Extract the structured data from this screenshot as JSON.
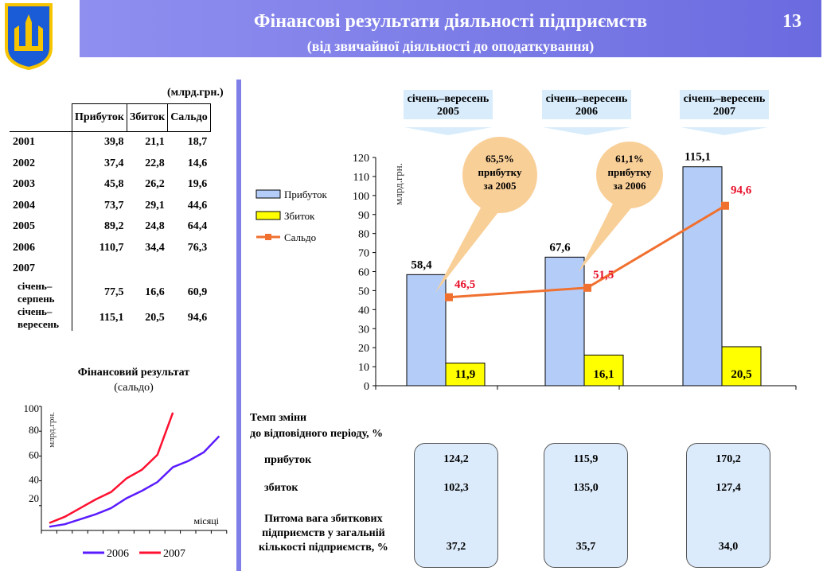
{
  "header": {
    "title": "Фінансові результати діяльності підприємств",
    "subtitle": "(від звичайної діяльності до оподаткування)",
    "page_number": "13"
  },
  "table": {
    "unit": "(млрд.грн.)",
    "columns": [
      "",
      "Прибуток",
      "Збиток",
      "Сальдо"
    ],
    "rows": [
      [
        "2001",
        "39,8",
        "21,1",
        "18,7"
      ],
      [
        "2002",
        "37,4",
        "22,8",
        "14,6"
      ],
      [
        "2003",
        "45,8",
        "26,2",
        "19,6"
      ],
      [
        "2004",
        "73,7",
        "29,1",
        "44,6"
      ],
      [
        "2005",
        "89,2",
        "24,8",
        "64,4"
      ],
      [
        "2006",
        "110,7",
        "34,4",
        "76,3"
      ],
      [
        "2007",
        "",
        "",
        ""
      ],
      [
        "січень–серпень",
        "77,5",
        "16,6",
        "60,9"
      ],
      [
        "січень–вересень",
        "115,1",
        "20,5",
        "94,6"
      ]
    ]
  },
  "chart_data": [
    {
      "type": "bar",
      "title": "",
      "ylabel": "млрд.грн.",
      "ylim": [
        0,
        120
      ],
      "yticks": [
        0,
        10,
        20,
        30,
        40,
        50,
        60,
        70,
        80,
        90,
        100,
        110,
        120
      ],
      "categories": [
        "січень–вересень 2005",
        "січень–вересень 2006",
        "січень–вересень 2007"
      ],
      "series": [
        {
          "name": "Прибуток",
          "type": "bar",
          "color": "#b4cdf8",
          "values": [
            58.4,
            67.6,
            115.1
          ],
          "labels": [
            "58,4",
            "67,6",
            "115,1"
          ]
        },
        {
          "name": "Збиток",
          "type": "bar",
          "color": "#ffff00",
          "values": [
            11.9,
            16.1,
            20.5
          ],
          "labels": [
            "11,9",
            "16,1",
            "20,5"
          ]
        },
        {
          "name": "Сальдо",
          "type": "line",
          "color": "#f07030",
          "values": [
            46.5,
            51.5,
            94.6
          ],
          "labels": [
            "46,5",
            "51,5",
            "94,6"
          ]
        }
      ],
      "category_labels": [
        [
          "січень–вересень",
          "2005"
        ],
        [
          "січень–вересень",
          "2006"
        ],
        [
          "січень–вересень",
          "2007"
        ]
      ],
      "annotations": [
        [
          "65,5%",
          "прибутку",
          "за  2005"
        ],
        [
          "61,1%",
          "прибутку",
          "за  2006"
        ]
      ],
      "legend": "left"
    },
    {
      "type": "line",
      "title": "Фінансовий  результат",
      "subtitle": "(сальдо)",
      "ylabel": "млрд.грн.",
      "xlabel": "місяці",
      "ylim": [
        0,
        100
      ],
      "yticks": [
        20,
        40,
        60,
        80,
        100
      ],
      "series": [
        {
          "name": "2006",
          "color": "#5a1cff",
          "values": [
            3,
            5,
            9,
            13,
            18,
            26,
            32,
            39,
            51,
            56,
            63,
            76
          ]
        },
        {
          "name": "2007",
          "color": "#ff1030",
          "values": [
            6,
            11,
            18,
            25,
            31,
            42,
            49,
            61,
            95
          ]
        }
      ],
      "legend": "bottom"
    }
  ],
  "rates": {
    "title": [
      "Темп зміни",
      "до відповідного періоду, %"
    ],
    "rows": [
      {
        "label": "прибуток",
        "values": [
          "124,2",
          "115,9",
          "170,2"
        ]
      },
      {
        "label": "збиток",
        "values": [
          "102,3",
          "135,0",
          "127,4"
        ]
      }
    ],
    "share": {
      "label": [
        "Питома вага збиткових",
        "підприємств у загальній",
        "кількості підприємств, %"
      ],
      "values": [
        "37,2",
        "35,7",
        "34,0"
      ]
    }
  }
}
